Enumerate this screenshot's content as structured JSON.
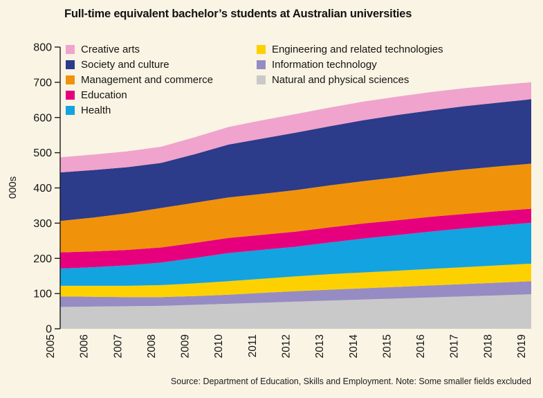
{
  "title": "Full-time equivalent bachelor’s students at Australian universities",
  "source_note": "Source: Department of Education, Skills and Employment. Note: Some smaller fields excluded",
  "colors": {
    "background": "#faf4e4",
    "axis": "#1a1a1a",
    "text": "#141413"
  },
  "chart_data": {
    "type": "area",
    "stacked": true,
    "title": "Full-time equivalent bachelor’s students at Australian universities",
    "xlabel": "",
    "ylabel": "000s",
    "ylim": [
      0,
      800
    ],
    "yticks": [
      0,
      100,
      200,
      300,
      400,
      500,
      600,
      700,
      800
    ],
    "grid": false,
    "legend_position": "top-inside-two-columns",
    "x": [
      2005,
      2006,
      2007,
      2008,
      2009,
      2010,
      2011,
      2012,
      2013,
      2014,
      2015,
      2016,
      2017,
      2018,
      2019
    ],
    "series": [
      {
        "name": "Natural and physical sciences",
        "color": "#c9c9c9",
        "values": [
          62,
          63,
          64,
          65,
          68,
          71,
          74,
          77,
          80,
          83,
          86,
          89,
          92,
          95,
          98
        ]
      },
      {
        "name": "Information technology",
        "color": "#968cc3",
        "values": [
          30,
          28,
          26,
          25,
          25,
          26,
          28,
          30,
          31,
          32,
          33,
          34,
          35,
          36,
          37
        ]
      },
      {
        "name": "Engineering and related technologies",
        "color": "#fdd100",
        "values": [
          30,
          31,
          32,
          34,
          36,
          38,
          40,
          42,
          44,
          45,
          46,
          47,
          48,
          49,
          50
        ]
      },
      {
        "name": "Health",
        "color": "#12a3e0",
        "values": [
          49,
          53,
          58,
          64,
          72,
          80,
          82,
          84,
          90,
          96,
          101,
          106,
          110,
          113,
          116
        ]
      },
      {
        "name": "Education",
        "color": "#e7007e",
        "values": [
          46,
          45,
          44,
          43,
          43,
          43,
          43,
          43,
          43,
          43,
          42,
          42,
          41,
          41,
          40
        ]
      },
      {
        "name": "Management and commerce",
        "color": "#f0930a",
        "values": [
          89,
          96,
          104,
          112,
          114,
          115,
          116,
          118,
          119,
          120,
          122,
          124,
          126,
          127,
          128
        ]
      },
      {
        "name": "Society and culture",
        "color": "#2c3b8a",
        "values": [
          138,
          135,
          131,
          128,
          138,
          150,
          157,
          163,
          168,
          173,
          177,
          178,
          180,
          181,
          183
        ]
      },
      {
        "name": "Creative arts",
        "color": "#f0a3cc",
        "values": [
          43,
          44,
          45,
          46,
          48,
          50,
          52,
          53,
          53,
          53,
          52,
          52,
          51,
          50,
          48
        ]
      }
    ],
    "legend_columns": [
      [
        "Creative arts",
        "Society and culture",
        "Management and commerce",
        "Education",
        "Health"
      ],
      [
        "Engineering and related technologies",
        "Information technology",
        "Natural and physical sciences"
      ]
    ]
  }
}
